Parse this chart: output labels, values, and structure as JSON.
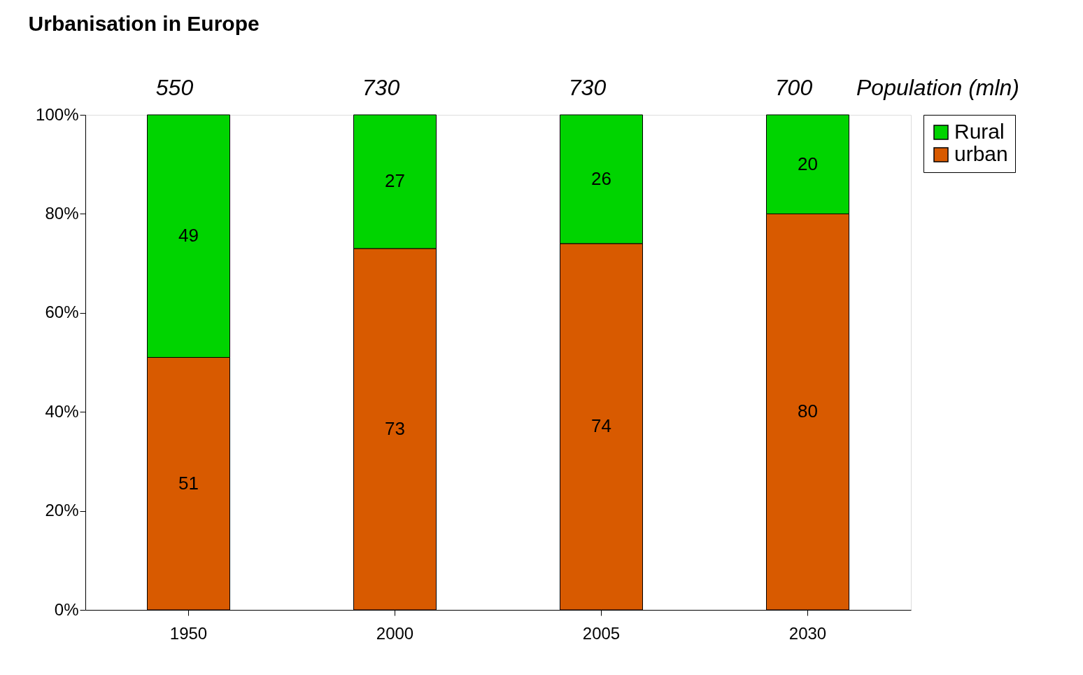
{
  "chart_data": {
    "type": "bar",
    "title": "Urbanisation in Europe",
    "categories": [
      "1950",
      "2000",
      "2005",
      "2030"
    ],
    "stacked": true,
    "series": [
      {
        "name": "urban",
        "color": "#d85a00",
        "values": [
          51,
          73,
          74,
          80
        ]
      },
      {
        "name": "Rural",
        "color": "#00d400",
        "values": [
          49,
          27,
          26,
          20
        ]
      }
    ],
    "ylim": [
      0,
      100
    ],
    "yticks": [
      {
        "value": 0,
        "label": "0%"
      },
      {
        "value": 20,
        "label": "20%"
      },
      {
        "value": 40,
        "label": "40%"
      },
      {
        "value": 60,
        "label": "60%"
      },
      {
        "value": 80,
        "label": "80%"
      },
      {
        "value": 100,
        "label": "100%"
      }
    ],
    "data_labels": true,
    "legend": "right",
    "grid": false,
    "annotations": [
      "550",
      "730",
      "730",
      "700",
      "Population (mln)"
    ]
  }
}
